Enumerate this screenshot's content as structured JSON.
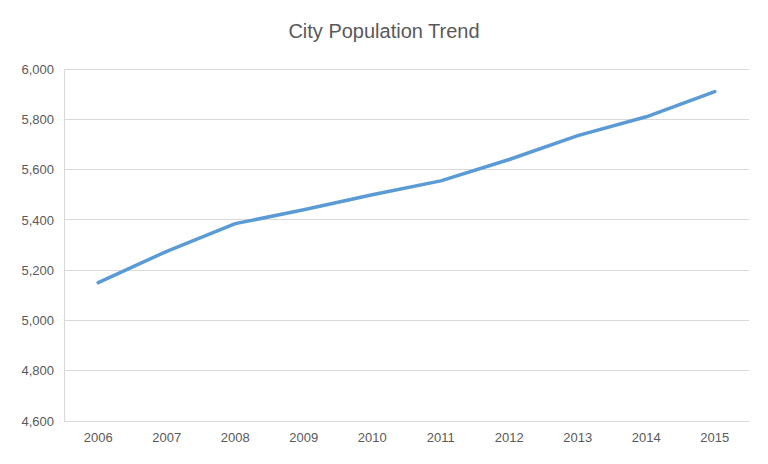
{
  "chart_data": {
    "type": "line",
    "title": "City Population Trend",
    "categories": [
      "2006",
      "2007",
      "2008",
      "2009",
      "2010",
      "2011",
      "2012",
      "2013",
      "2014",
      "2015"
    ],
    "values": [
      5150,
      5275,
      5385,
      5440,
      5500,
      5555,
      5640,
      5735,
      5810,
      5910
    ],
    "color": "#5b9bd5",
    "ylim": [
      4600,
      6000
    ],
    "yticks": [
      {
        "value": 4600,
        "label": "4,600"
      },
      {
        "value": 4800,
        "label": "4,800"
      },
      {
        "value": 5000,
        "label": "5,000"
      },
      {
        "value": 5200,
        "label": "5,200"
      },
      {
        "value": 5400,
        "label": "5,400"
      },
      {
        "value": 5600,
        "label": "5,600"
      },
      {
        "value": 5800,
        "label": "5,800"
      },
      {
        "value": 6000,
        "label": "6,000"
      }
    ],
    "grid": true
  }
}
